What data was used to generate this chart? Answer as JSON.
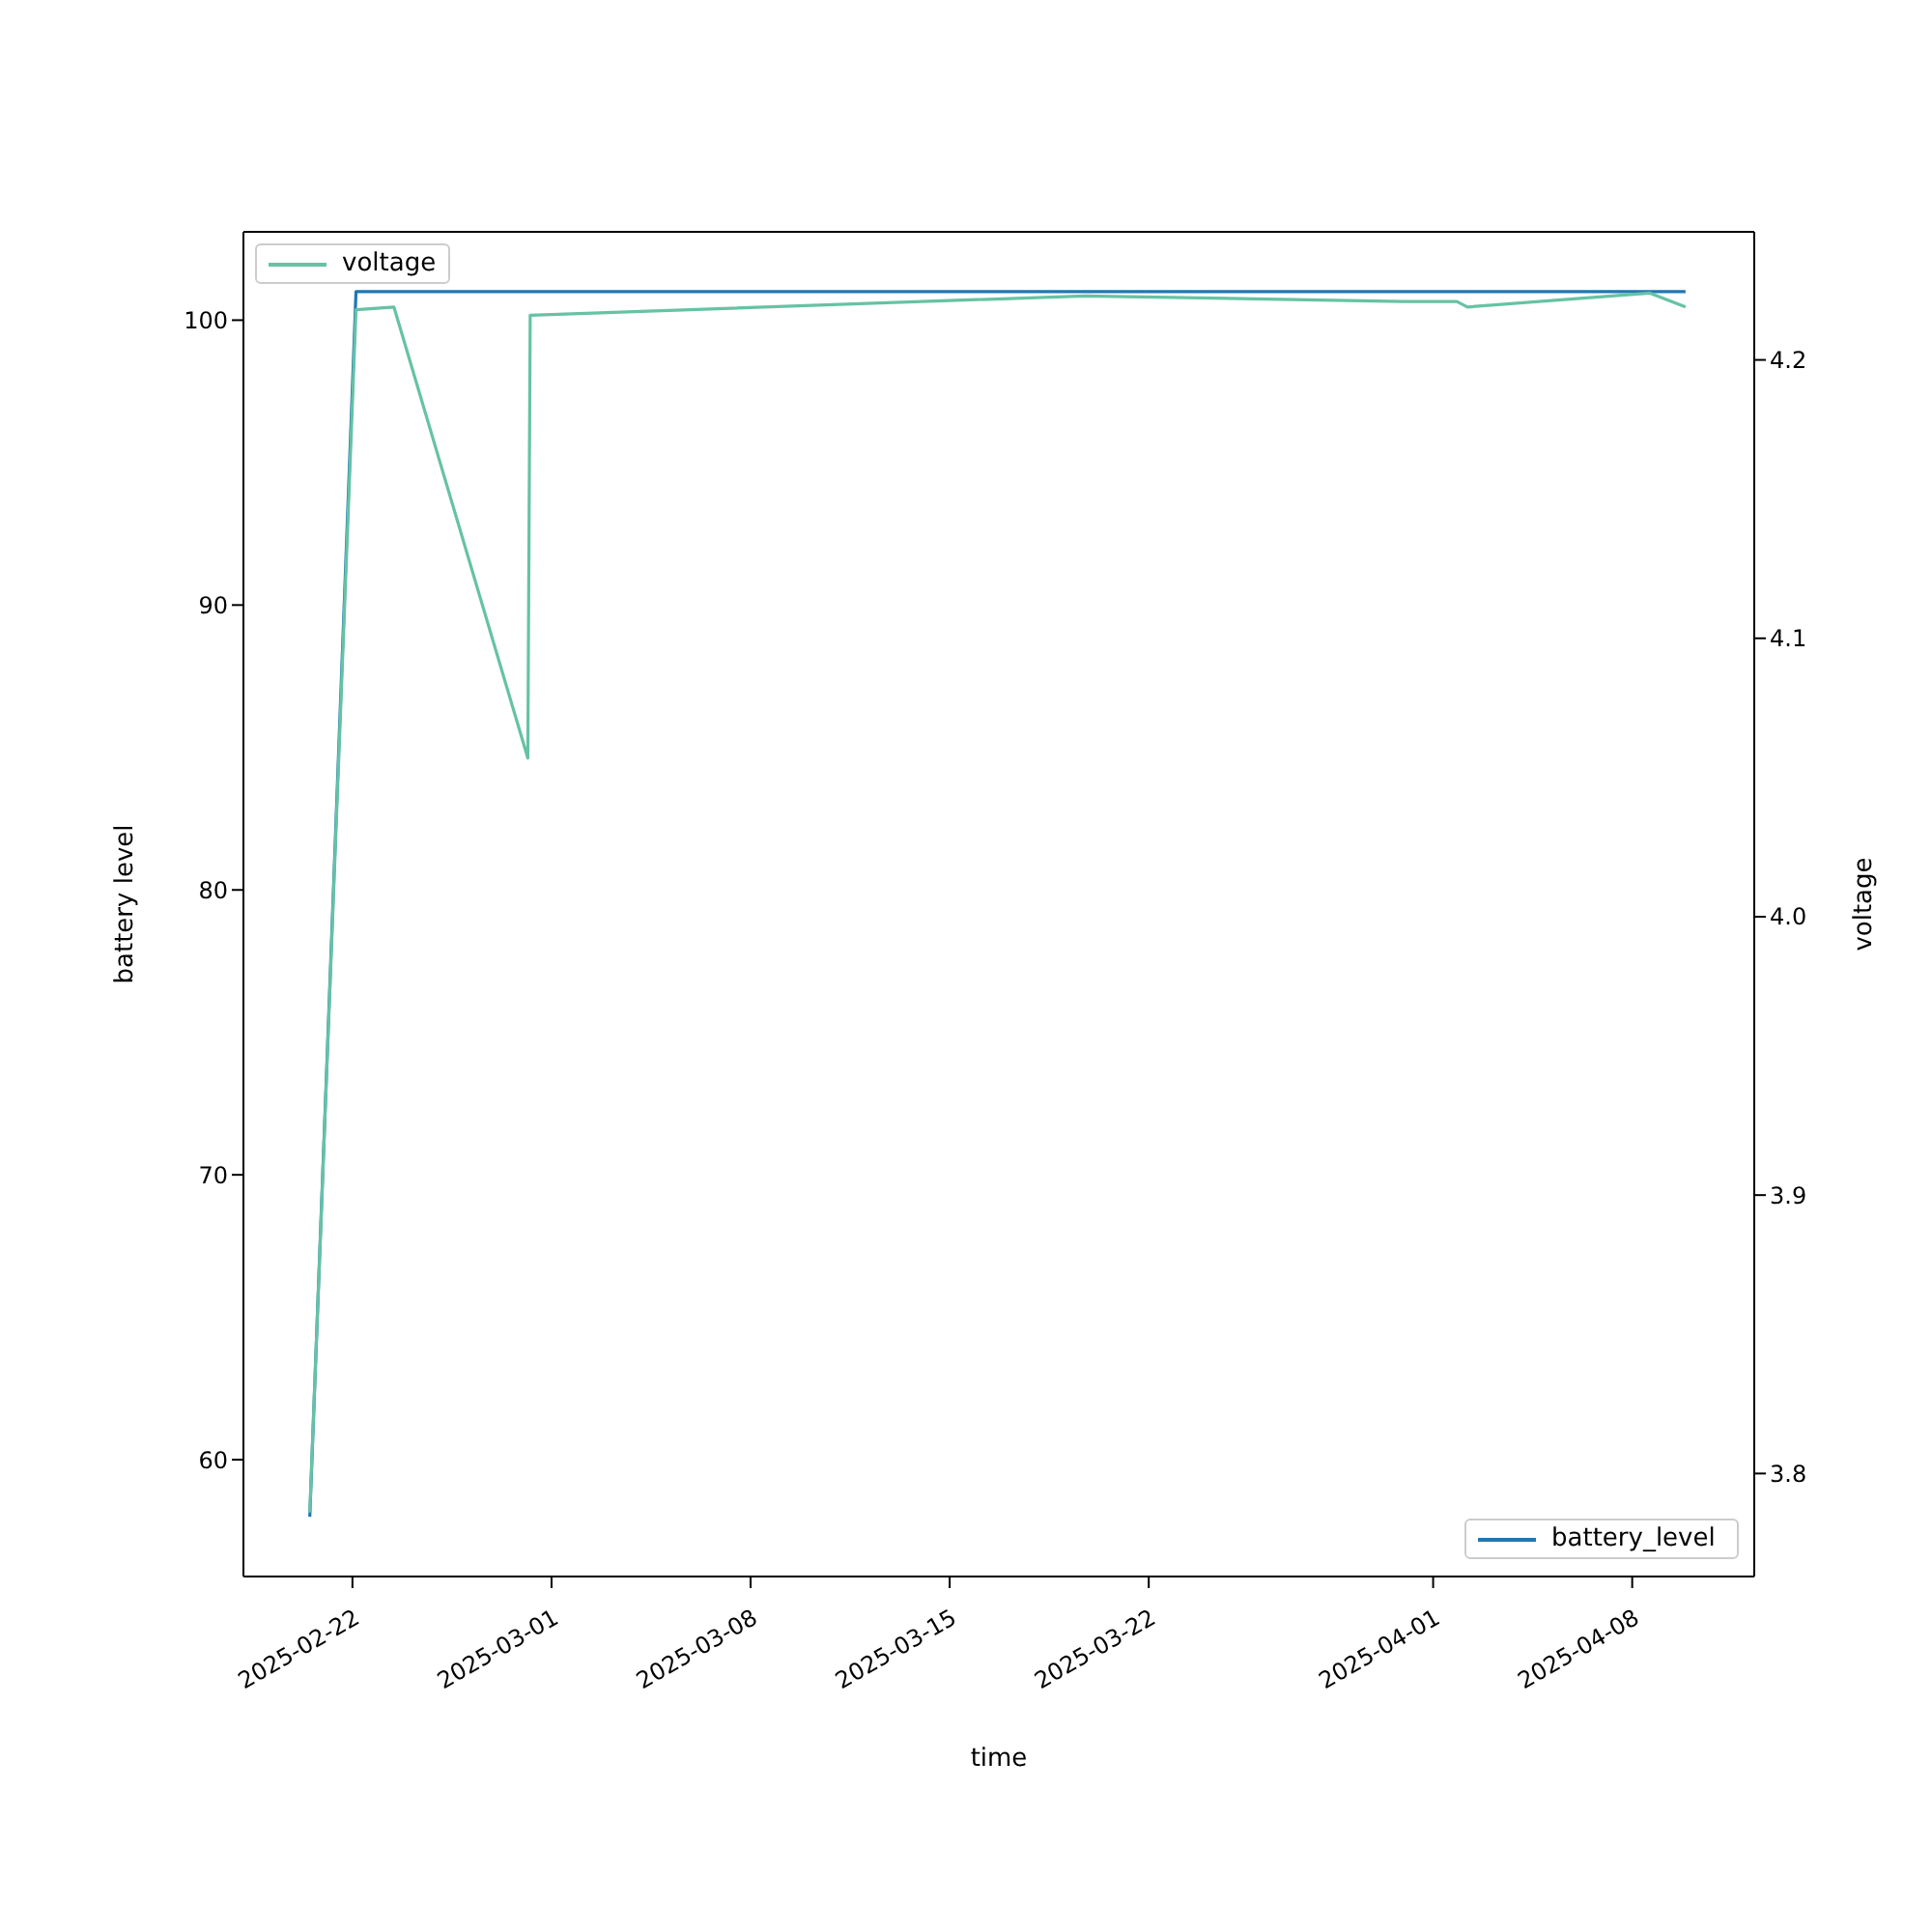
{
  "chart_data": {
    "type": "line",
    "xlabel": "time",
    "ylabel": "battery level",
    "y2label": "voltage",
    "xlim": [
      "2025-02-18T04:00",
      "2025-04-12T07:00"
    ],
    "xticks": [
      "2025-02-22",
      "2025-03-01",
      "2025-03-08",
      "2025-03-15",
      "2025-03-22",
      "2025-04-01",
      "2025-04-08"
    ],
    "ylim": [
      55.9,
      103.1
    ],
    "yticks": [
      60,
      70,
      80,
      90,
      100
    ],
    "y2lim": [
      3.763,
      4.246
    ],
    "y2ticks": [
      3.8,
      3.9,
      {
        "value": 4,
        "label": "4.0"
      },
      4.1,
      4.2
    ],
    "grid": false,
    "legend": "top left",
    "marker": "none",
    "line_style": "solid",
    "series": [
      {
        "name": "battery_level",
        "color": "#1f77b4",
        "x": [
          "2025-02-20T12:00",
          "2025-02-22T03:00",
          "2025-04-09T21:00"
        ],
        "values": [
          58,
          101,
          101
        ]
      },
      {
        "name": "voltage",
        "color": "#66c2a5",
        "axis": "y2",
        "x": [
          "2025-02-20T12:00",
          "2025-02-22T03:00",
          "2025-02-23T11:00",
          "2025-02-28T04:00",
          "2025-02-28T06:00",
          "2025-03-19T18:00",
          "2025-03-30T22:00",
          "2025-04-01T20:00",
          "2025-04-02T05:00",
          "2025-04-08T15:00",
          "2025-04-09T21:00"
        ],
        "values": [
          3.786,
          4.218,
          4.219,
          4.057,
          4.216,
          4.223,
          4.221,
          4.221,
          4.219,
          4.224,
          4.219
        ]
      }
    ]
  }
}
